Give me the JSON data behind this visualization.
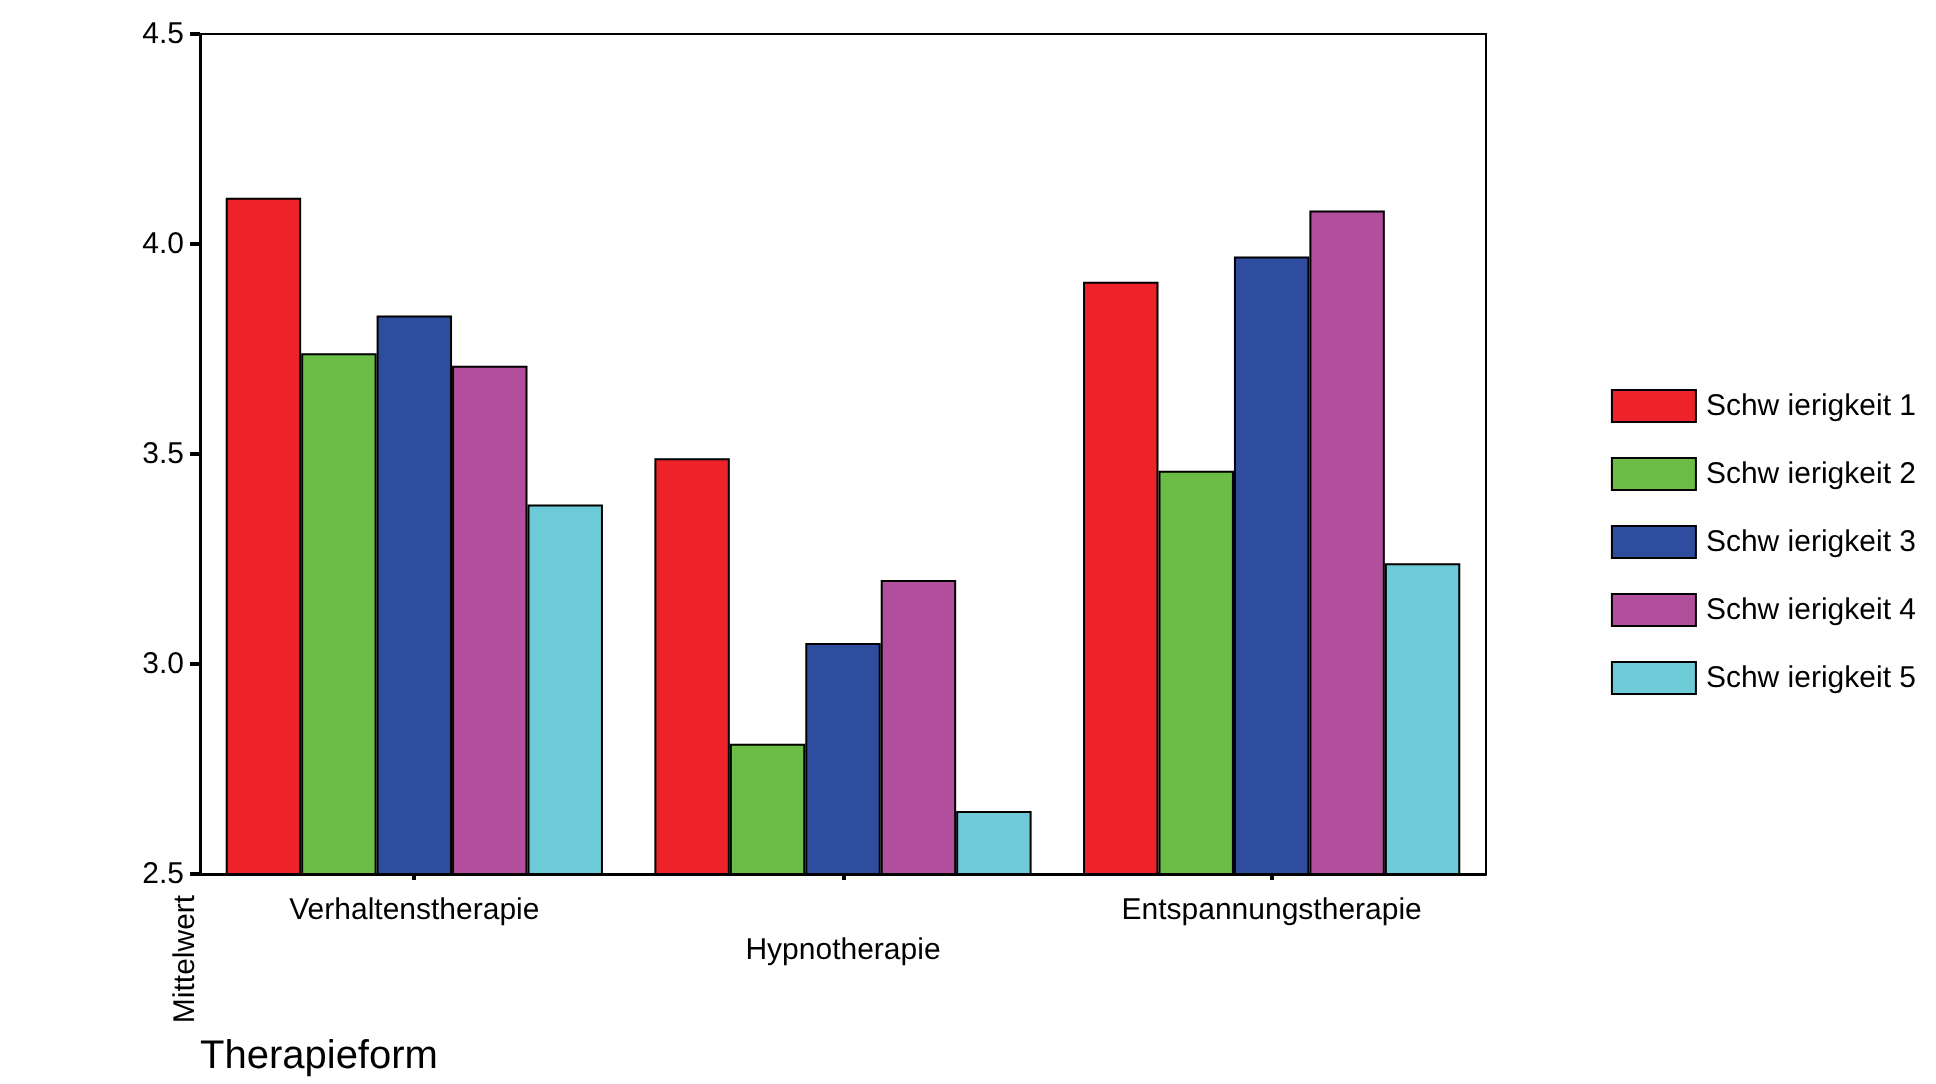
{
  "chart_data": {
    "type": "bar",
    "xlabel": "Therapieform",
    "ylabel": "Mittelwert",
    "categories": [
      "Verhaltenstherapie",
      "Hypnotherapie",
      "Entspannungstherapie"
    ],
    "series": [
      {
        "name": "Schw ierigkeit 1",
        "color": "#ee2229",
        "values": [
          4.11,
          3.49,
          3.91
        ]
      },
      {
        "name": "Schw ierigkeit 2",
        "color": "#6cbd45",
        "values": [
          3.74,
          2.81,
          3.46
        ]
      },
      {
        "name": "Schw ierigkeit 3",
        "color": "#2e4d9e",
        "values": [
          3.83,
          3.05,
          3.97
        ]
      },
      {
        "name": "Schw ierigkeit 4",
        "color": "#b24f9c",
        "values": [
          3.71,
          3.2,
          4.08
        ]
      },
      {
        "name": "Schw ierigkeit 5",
        "color": "#6dcbd8",
        "values": [
          3.38,
          2.65,
          3.24
        ]
      }
    ],
    "ylim": [
      2.5,
      4.5
    ],
    "yticks": [
      2.5,
      {
        "value": 3,
        "label": "3.0"
      },
      3.5,
      {
        "value": 4,
        "label": "4.0"
      },
      4.5
    ],
    "grid": false,
    "legend": "right"
  }
}
